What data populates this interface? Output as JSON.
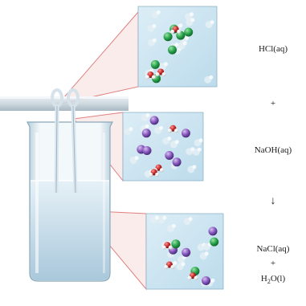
{
  "equation": {
    "reactant_1": "HCl(aq)",
    "plus_1": "+",
    "reactant_2": "NaOH(aq)",
    "arrow": "↓",
    "product_1": "NaCl(aq)",
    "plus_2": "+",
    "product_2_prefix": "H",
    "product_2_subscript": "2",
    "product_2_suffix": "O(l)"
  },
  "colors": {
    "panel_bg": "#cfe6f2",
    "chlorine": "#2fa84f",
    "sodium": "#8a5cc0",
    "oxygen": "#cc2b2b",
    "hydrogen": "#f4f4f4",
    "water_blue": "#bcd6e6",
    "leader": "#e08080"
  },
  "panels": [
    {
      "id": "hcl",
      "atoms": [
        "chlorine",
        "oxygen",
        "hydrogen"
      ]
    },
    {
      "id": "naoh",
      "atoms": [
        "sodium",
        "oxygen",
        "hydrogen"
      ]
    },
    {
      "id": "nacl",
      "atoms": [
        "sodium",
        "chlorine",
        "oxygen",
        "hydrogen"
      ]
    }
  ]
}
